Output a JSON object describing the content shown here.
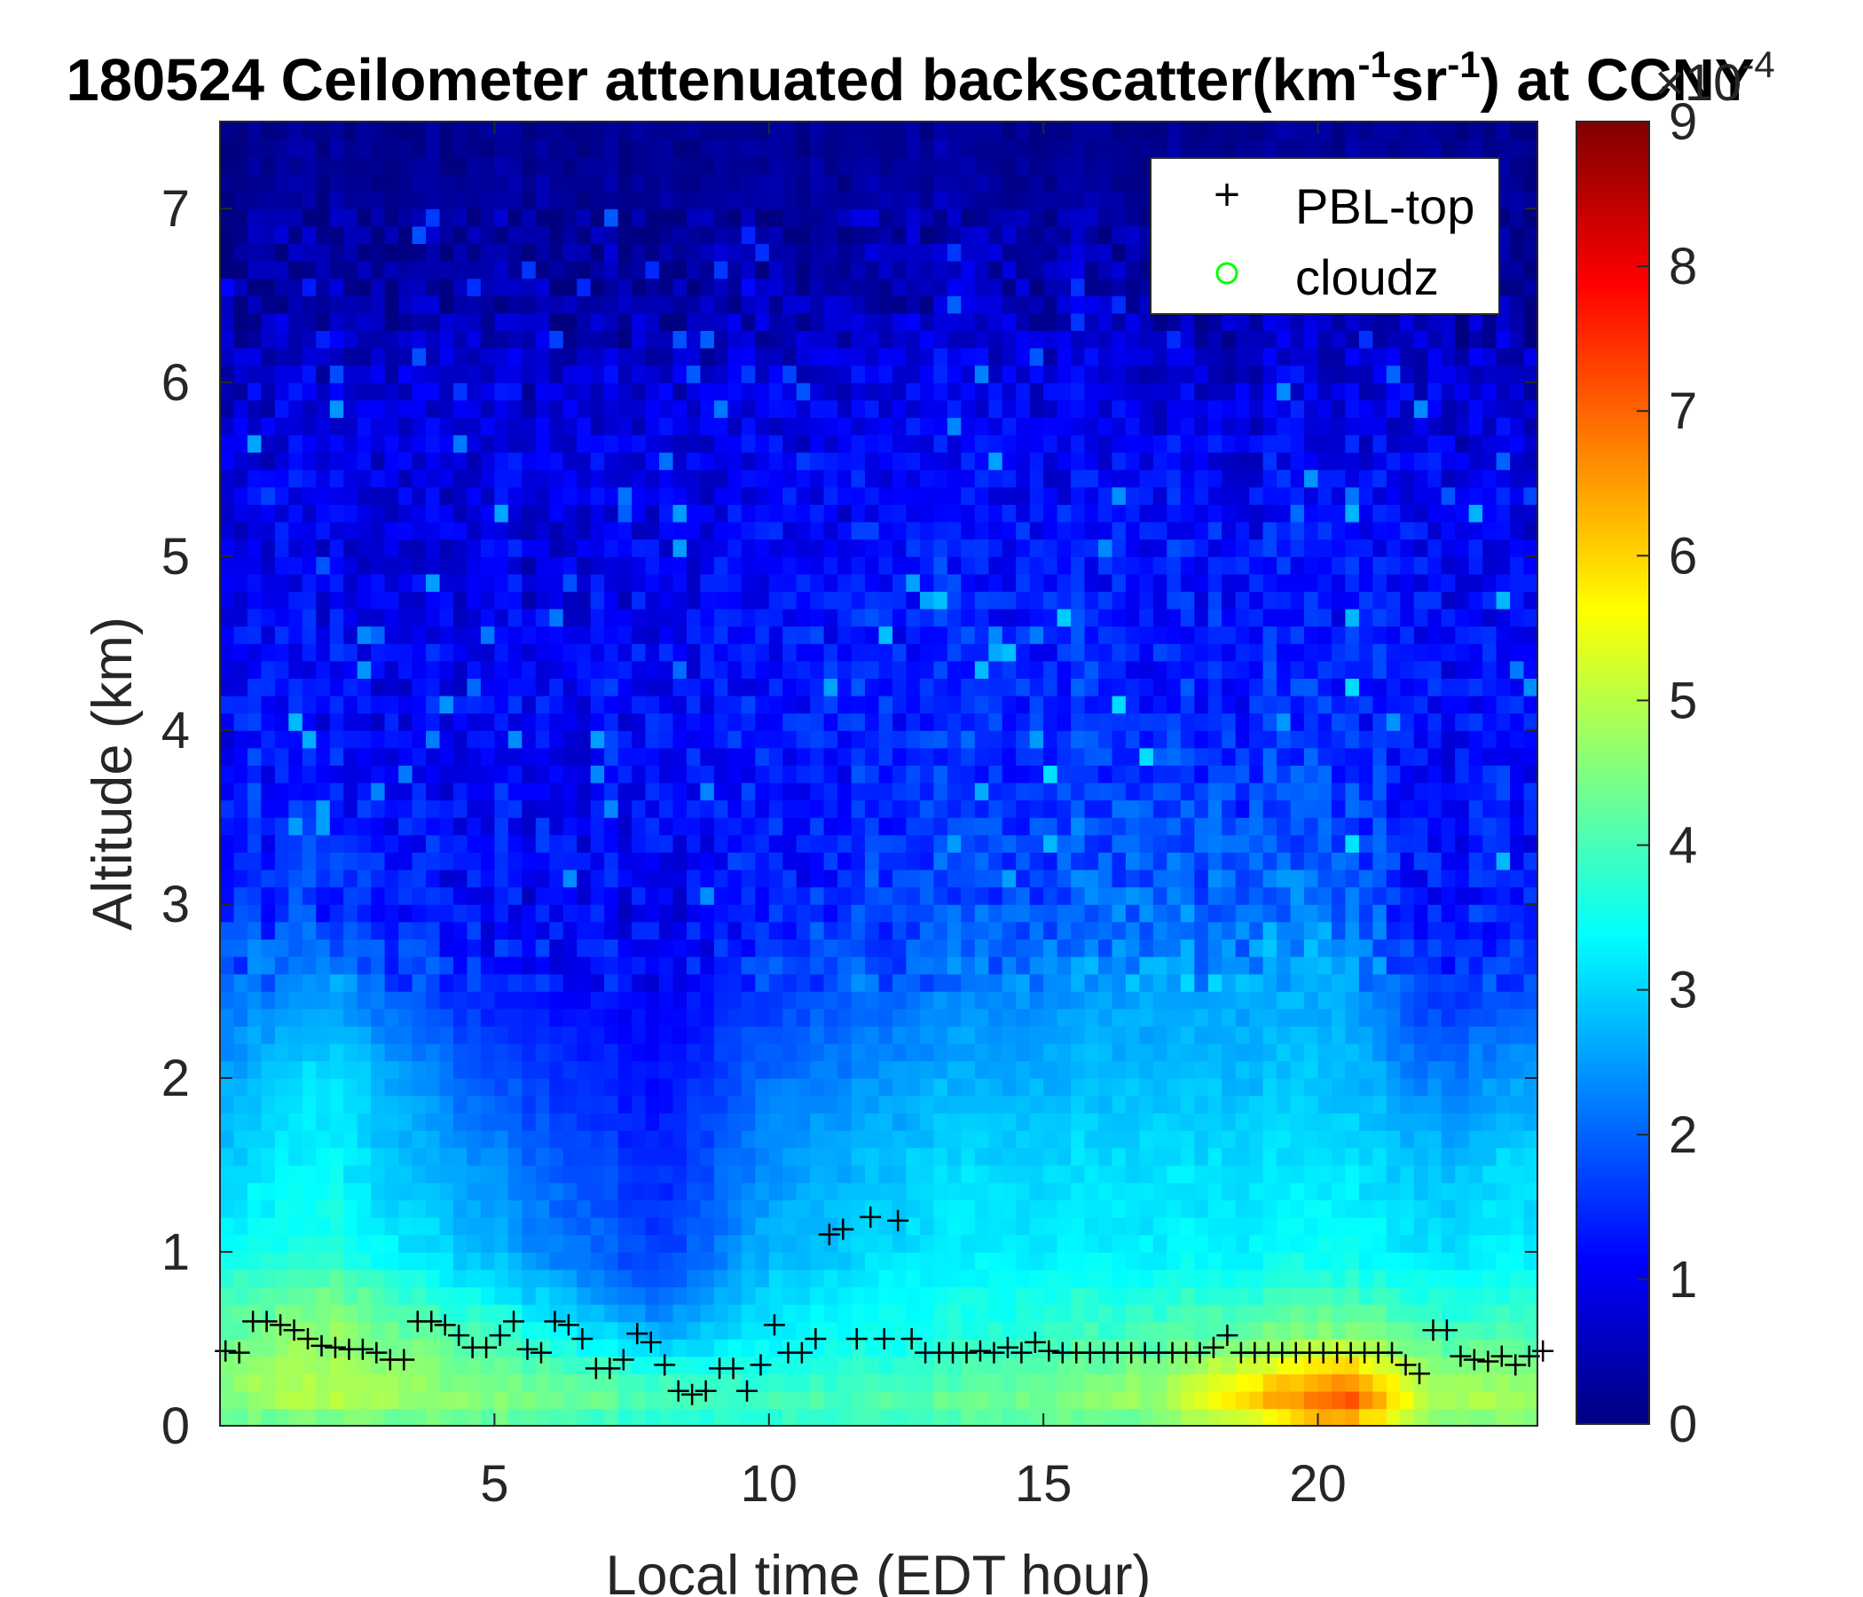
{
  "chart_data": {
    "type": "heatmap",
    "title": {
      "prefix": "180524 Ceilometer attenuated backscatter(km",
      "sup1": "-1",
      "middle": "sr",
      "sup2": "-1",
      "suffix": ") at CCNY"
    },
    "xlabel": "Local time (EDT hour)",
    "ylabel": "Altitude (km)",
    "xlim": [
      0,
      24
    ],
    "ylim": [
      0,
      7.5
    ],
    "xticks": [
      5,
      10,
      15,
      20
    ],
    "yticks": [
      0,
      1,
      2,
      3,
      4,
      5,
      6,
      7
    ],
    "colorbar": {
      "colormap": "jet",
      "range": [
        0,
        9
      ],
      "ticks": [
        0,
        1,
        2,
        3,
        4,
        5,
        6,
        7,
        8,
        9
      ],
      "exponent_base": "×10",
      "exponent_power": "-4"
    },
    "legend": {
      "location": "top-right",
      "entries": [
        {
          "label": "PBL-top",
          "marker": "+",
          "color": "#000000"
        },
        {
          "label": "cloudz",
          "marker": "o",
          "color": "#00ff00"
        }
      ]
    },
    "background_profile": {
      "description_free": true,
      "altitude_km": [
        0.0,
        0.1,
        0.3,
        0.5,
        0.8,
        1.0,
        1.5,
        2.0,
        2.5,
        3.0,
        4.0,
        5.0,
        6.0,
        6.5,
        7.5
      ],
      "keyframes": [
        {
          "hour": 0.0,
          "values": [
            3.9,
            4.6,
            4.6,
            4.3,
            3.9,
            3.4,
            3.0,
            2.6,
            2.1,
            1.5,
            1.3,
            1.1,
            0.8,
            0.3,
            0.15
          ]
        },
        {
          "hour": 2.0,
          "values": [
            4.1,
            4.9,
            4.9,
            4.7,
            4.3,
            3.7,
            3.3,
            3.2,
            2.4,
            1.5,
            1.2,
            1.0,
            0.8,
            0.3,
            0.15
          ]
        },
        {
          "hour": 5.0,
          "values": [
            3.9,
            4.6,
            4.4,
            4.0,
            3.1,
            2.7,
            2.3,
            1.8,
            1.3,
            1.1,
            1.1,
            0.9,
            0.8,
            0.3,
            0.15
          ]
        },
        {
          "hour": 8.0,
          "values": [
            3.3,
            4.1,
            3.8,
            2.7,
            1.9,
            1.6,
            1.4,
            1.2,
            1.1,
            1.1,
            1.2,
            1.0,
            0.8,
            0.3,
            0.15
          ]
        },
        {
          "hour": 10.0,
          "values": [
            3.6,
            4.0,
            3.6,
            3.3,
            3.0,
            2.7,
            2.4,
            2.1,
            1.6,
            1.3,
            1.3,
            1.1,
            0.8,
            0.4,
            0.15
          ]
        },
        {
          "hour": 13.0,
          "values": [
            3.8,
            4.3,
            3.9,
            3.6,
            3.4,
            3.2,
            3.0,
            2.6,
            2.2,
            1.7,
            1.5,
            1.3,
            1.0,
            0.6,
            0.2
          ]
        },
        {
          "hour": 17.0,
          "values": [
            4.1,
            4.8,
            4.6,
            4.1,
            3.6,
            3.3,
            3.1,
            2.8,
            2.6,
            2.1,
            1.5,
            1.3,
            0.9,
            0.4,
            0.15
          ]
        },
        {
          "hour": 20.5,
          "values": [
            5.4,
            7.4,
            6.4,
            4.6,
            3.8,
            3.4,
            3.1,
            2.8,
            2.6,
            2.0,
            1.4,
            1.2,
            0.8,
            0.3,
            0.15
          ]
        },
        {
          "hour": 22.0,
          "values": [
            4.3,
            5.0,
            4.7,
            4.1,
            3.5,
            3.1,
            2.8,
            2.2,
            1.5,
            1.2,
            1.2,
            1.1,
            0.8,
            0.3,
            0.15
          ]
        },
        {
          "hour": 24.0,
          "values": [
            4.1,
            4.8,
            4.6,
            4.1,
            3.6,
            3.3,
            3.1,
            2.6,
            1.9,
            1.4,
            1.3,
            1.1,
            0.8,
            0.3,
            0.15
          ]
        }
      ]
    },
    "series": [
      {
        "name": "PBL-top",
        "x": [
          0.1,
          0.35,
          0.6,
          0.85,
          1.1,
          1.35,
          1.6,
          1.85,
          2.1,
          2.35,
          2.6,
          2.85,
          3.1,
          3.35,
          3.6,
          3.85,
          4.1,
          4.35,
          4.6,
          4.85,
          5.1,
          5.35,
          5.6,
          5.85,
          6.1,
          6.35,
          6.6,
          6.85,
          7.1,
          7.35,
          7.6,
          7.85,
          8.1,
          8.35,
          8.6,
          8.85,
          9.1,
          9.35,
          9.6,
          9.85,
          10.1,
          10.35,
          10.6,
          10.85,
          11.1,
          11.35,
          11.6,
          11.85,
          12.1,
          12.35,
          12.6,
          12.85,
          13.1,
          13.35,
          13.6,
          13.85,
          14.1,
          14.35,
          14.6,
          14.85,
          15.1,
          15.35,
          15.6,
          15.85,
          16.1,
          16.35,
          16.6,
          16.85,
          17.1,
          17.35,
          17.6,
          17.85,
          18.1,
          18.35,
          18.6,
          18.85,
          19.1,
          19.35,
          19.6,
          19.85,
          20.1,
          20.35,
          20.6,
          20.85,
          21.1,
          21.35,
          21.6,
          21.85,
          22.1,
          22.35,
          22.6,
          22.85,
          23.1,
          23.35,
          23.6,
          23.85,
          24.1
        ],
        "y": [
          0.43,
          0.42,
          0.6,
          0.6,
          0.58,
          0.55,
          0.5,
          0.46,
          0.45,
          0.44,
          0.44,
          0.42,
          0.38,
          0.38,
          0.6,
          0.6,
          0.58,
          0.52,
          0.45,
          0.45,
          0.52,
          0.6,
          0.44,
          0.42,
          0.6,
          0.58,
          0.5,
          0.33,
          0.33,
          0.38,
          0.53,
          0.48,
          0.35,
          0.2,
          0.18,
          0.2,
          0.33,
          0.33,
          0.2,
          0.35,
          0.58,
          0.42,
          0.42,
          0.5,
          1.1,
          1.13,
          0.5,
          1.2,
          0.5,
          1.18,
          0.5,
          0.42,
          0.42,
          0.42,
          0.42,
          0.43,
          0.42,
          0.45,
          0.42,
          0.48,
          0.43,
          0.42,
          0.42,
          0.42,
          0.42,
          0.42,
          0.42,
          0.42,
          0.42,
          0.42,
          0.42,
          0.42,
          0.45,
          0.52,
          0.42,
          0.42,
          0.42,
          0.42,
          0.42,
          0.42,
          0.42,
          0.42,
          0.42,
          0.42,
          0.42,
          0.42,
          0.35,
          0.3,
          0.55,
          0.55,
          0.4,
          0.38,
          0.37,
          0.4,
          0.35,
          0.4,
          0.43
        ]
      }
    ]
  }
}
